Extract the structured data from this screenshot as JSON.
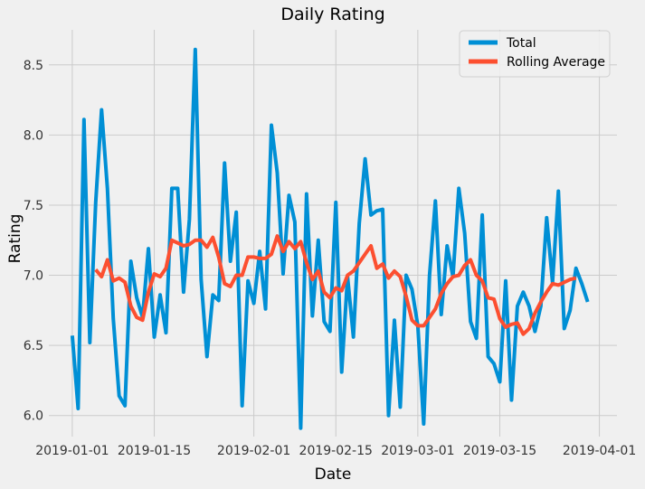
{
  "chart_data": {
    "type": "line",
    "title": "Daily Rating",
    "xlabel": "Date",
    "ylabel": "Rating",
    "xlim": [
      "2018-12-28",
      "2019-04-04"
    ],
    "ylim": [
      5.85,
      8.75
    ],
    "x_ticks": [
      "2019-01-01",
      "2019-01-15",
      "2019-02-01",
      "2019-02-15",
      "2019-03-01",
      "2019-03-15",
      "2019-04-01"
    ],
    "y_ticks": [
      6.0,
      6.5,
      7.0,
      7.5,
      8.0,
      8.5
    ],
    "y_tick_labels": [
      "6.0",
      "6.5",
      "7.0",
      "7.5",
      "8.0",
      "8.5"
    ],
    "grid": true,
    "legend_position": "top-right",
    "start_date": "2019-01-01",
    "series": [
      {
        "name": "Total",
        "color": "#008fd5",
        "values": [
          6.57,
          6.05,
          8.11,
          6.52,
          7.52,
          8.18,
          7.62,
          6.69,
          6.14,
          6.07,
          7.1,
          6.84,
          6.7,
          7.19,
          6.56,
          6.86,
          6.59,
          7.62,
          7.62,
          6.88,
          7.4,
          8.61,
          6.97,
          6.42,
          6.86,
          6.82,
          7.8,
          7.1,
          7.45,
          6.07,
          6.96,
          6.8,
          7.17,
          6.76,
          8.07,
          7.73,
          7.01,
          7.57,
          7.38,
          5.91,
          7.58,
          6.71,
          7.25,
          6.67,
          6.6,
          7.52,
          6.31,
          6.99,
          6.56,
          7.37,
          7.83,
          7.43,
          7.46,
          7.47,
          6.0,
          6.68,
          6.06,
          7.0,
          6.9,
          6.64,
          5.94,
          7.0,
          7.53,
          6.72,
          7.21,
          6.99,
          7.62,
          7.3,
          6.67,
          6.55,
          7.43,
          6.42,
          6.37,
          6.24,
          6.96,
          6.11,
          6.78,
          6.88,
          6.78,
          6.6,
          6.78,
          7.41,
          6.95,
          7.6,
          6.62,
          6.75,
          7.05,
          6.94,
          6.81
        ]
      },
      {
        "name": "Rolling Average",
        "color": "#fc4f30",
        "start_index": 4,
        "values": [
          7.04,
          6.99,
          7.11,
          6.96,
          6.98,
          6.95,
          6.78,
          6.7,
          6.68,
          6.88,
          7.01,
          6.99,
          7.05,
          7.25,
          7.23,
          7.21,
          7.22,
          7.25,
          7.25,
          7.2,
          7.27,
          7.13,
          6.94,
          6.92,
          7.0,
          7.0,
          7.13,
          7.13,
          7.12,
          7.12,
          7.15,
          7.28,
          7.17,
          7.24,
          7.19,
          7.24,
          7.09,
          6.97,
          7.03,
          6.88,
          6.84,
          6.91,
          6.89,
          7.0,
          7.03,
          7.09,
          7.15,
          7.21,
          7.05,
          7.08,
          6.98,
          7.03,
          6.99,
          6.85,
          6.68,
          6.64,
          6.64,
          6.7,
          6.76,
          6.87,
          6.94,
          6.99,
          7.0,
          7.07,
          7.11,
          7.0,
          6.96,
          6.84,
          6.83,
          6.69,
          6.63,
          6.65,
          6.66,
          6.58,
          6.62,
          6.73,
          6.81,
          6.88,
          6.94,
          6.93,
          6.95,
          6.97,
          6.98
        ]
      }
    ]
  }
}
